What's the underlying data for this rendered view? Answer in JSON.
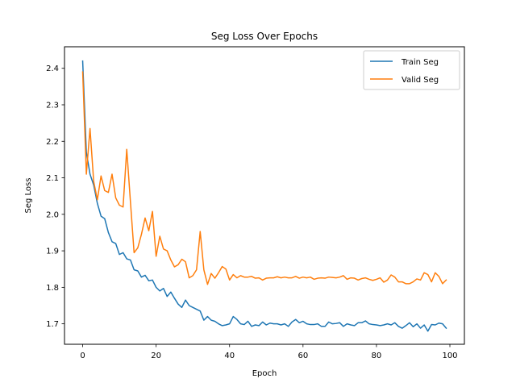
{
  "chart_data": {
    "type": "line",
    "title": "Seg Loss Over Epochs",
    "xlabel": "Epoch",
    "ylabel": "Seg Loss",
    "xlim": [
      -4.95,
      103.95
    ],
    "ylim": [
      1.644,
      2.459
    ],
    "xticks": [
      0,
      20,
      40,
      60,
      80,
      100
    ],
    "xtick_labels": [
      "0",
      "20",
      "40",
      "60",
      "80",
      "100"
    ],
    "yticks": [
      1.7,
      1.8,
      1.9,
      2.0,
      2.1,
      2.2,
      2.3,
      2.4
    ],
    "ytick_labels": [
      "1.7",
      "1.8",
      "1.9",
      "2.0",
      "2.1",
      "2.2",
      "2.3",
      "2.4"
    ],
    "grid": false,
    "legend_position": "top-right",
    "series": [
      {
        "name": "Train Seg",
        "color": "#1f77b4",
        "x": [
          0,
          1,
          2,
          3,
          4,
          5,
          6,
          7,
          8,
          9,
          10,
          11,
          12,
          13,
          14,
          15,
          16,
          17,
          18,
          19,
          20,
          21,
          22,
          23,
          24,
          25,
          26,
          27,
          28,
          29,
          30,
          31,
          32,
          33,
          34,
          35,
          36,
          37,
          38,
          39,
          40,
          41,
          42,
          43,
          44,
          45,
          46,
          47,
          48,
          49,
          50,
          51,
          52,
          53,
          54,
          55,
          56,
          57,
          58,
          59,
          60,
          61,
          62,
          63,
          64,
          65,
          66,
          67,
          68,
          69,
          70,
          71,
          72,
          73,
          74,
          75,
          76,
          77,
          78,
          79,
          80,
          81,
          82,
          83,
          84,
          85,
          86,
          87,
          88,
          89,
          90,
          91,
          92,
          93,
          94,
          95,
          96,
          97,
          98,
          99
        ],
        "values": [
          2.42,
          2.17,
          2.11,
          2.08,
          2.03,
          1.995,
          1.988,
          1.95,
          1.925,
          1.92,
          1.89,
          1.895,
          1.878,
          1.875,
          1.848,
          1.845,
          1.828,
          1.833,
          1.818,
          1.82,
          1.8,
          1.79,
          1.797,
          1.775,
          1.787,
          1.77,
          1.754,
          1.745,
          1.765,
          1.75,
          1.745,
          1.74,
          1.735,
          1.71,
          1.72,
          1.71,
          1.707,
          1.7,
          1.695,
          1.697,
          1.7,
          1.72,
          1.712,
          1.7,
          1.698,
          1.707,
          1.693,
          1.697,
          1.695,
          1.705,
          1.697,
          1.702,
          1.7,
          1.7,
          1.697,
          1.7,
          1.693,
          1.705,
          1.712,
          1.703,
          1.707,
          1.7,
          1.698,
          1.698,
          1.7,
          1.693,
          1.693,
          1.705,
          1.7,
          1.701,
          1.703,
          1.693,
          1.7,
          1.697,
          1.695,
          1.703,
          1.703,
          1.708,
          1.7,
          1.698,
          1.697,
          1.695,
          1.697,
          1.7,
          1.697,
          1.703,
          1.693,
          1.688,
          1.695,
          1.703,
          1.692,
          1.7,
          1.688,
          1.697,
          1.68,
          1.698,
          1.697,
          1.702,
          1.7,
          1.688
        ]
      },
      {
        "name": "Valid Seg",
        "color": "#ff7f0e",
        "x": [
          0,
          1,
          2,
          3,
          4,
          5,
          6,
          7,
          8,
          9,
          10,
          11,
          12,
          13,
          14,
          15,
          16,
          17,
          18,
          19,
          20,
          21,
          22,
          23,
          24,
          25,
          26,
          27,
          28,
          29,
          30,
          31,
          32,
          33,
          34,
          35,
          36,
          37,
          38,
          39,
          40,
          41,
          42,
          43,
          44,
          45,
          46,
          47,
          48,
          49,
          50,
          51,
          52,
          53,
          54,
          55,
          56,
          57,
          58,
          59,
          60,
          61,
          62,
          63,
          64,
          65,
          66,
          67,
          68,
          69,
          70,
          71,
          72,
          73,
          74,
          75,
          76,
          77,
          78,
          79,
          80,
          81,
          82,
          83,
          84,
          85,
          86,
          87,
          88,
          89,
          90,
          91,
          92,
          93,
          94,
          95,
          96,
          97,
          98,
          99
        ],
        "values": [
          2.39,
          2.11,
          2.235,
          2.09,
          2.04,
          2.105,
          2.065,
          2.06,
          2.11,
          2.045,
          2.025,
          2.02,
          2.178,
          2.035,
          1.895,
          1.908,
          1.945,
          1.99,
          1.955,
          2.008,
          1.885,
          1.94,
          1.905,
          1.9,
          1.875,
          1.856,
          1.862,
          1.877,
          1.87,
          1.826,
          1.832,
          1.848,
          1.953,
          1.848,
          1.808,
          1.838,
          1.825,
          1.84,
          1.857,
          1.85,
          1.82,
          1.835,
          1.826,
          1.832,
          1.828,
          1.828,
          1.83,
          1.825,
          1.826,
          1.82,
          1.825,
          1.826,
          1.826,
          1.829,
          1.826,
          1.828,
          1.826,
          1.826,
          1.83,
          1.825,
          1.828,
          1.826,
          1.828,
          1.822,
          1.825,
          1.826,
          1.825,
          1.828,
          1.827,
          1.826,
          1.828,
          1.832,
          1.822,
          1.826,
          1.825,
          1.82,
          1.824,
          1.826,
          1.822,
          1.819,
          1.822,
          1.826,
          1.814,
          1.82,
          1.834,
          1.828,
          1.815,
          1.815,
          1.81,
          1.81,
          1.815,
          1.823,
          1.82,
          1.84,
          1.835,
          1.815,
          1.84,
          1.83,
          1.81,
          1.82
        ]
      }
    ]
  }
}
